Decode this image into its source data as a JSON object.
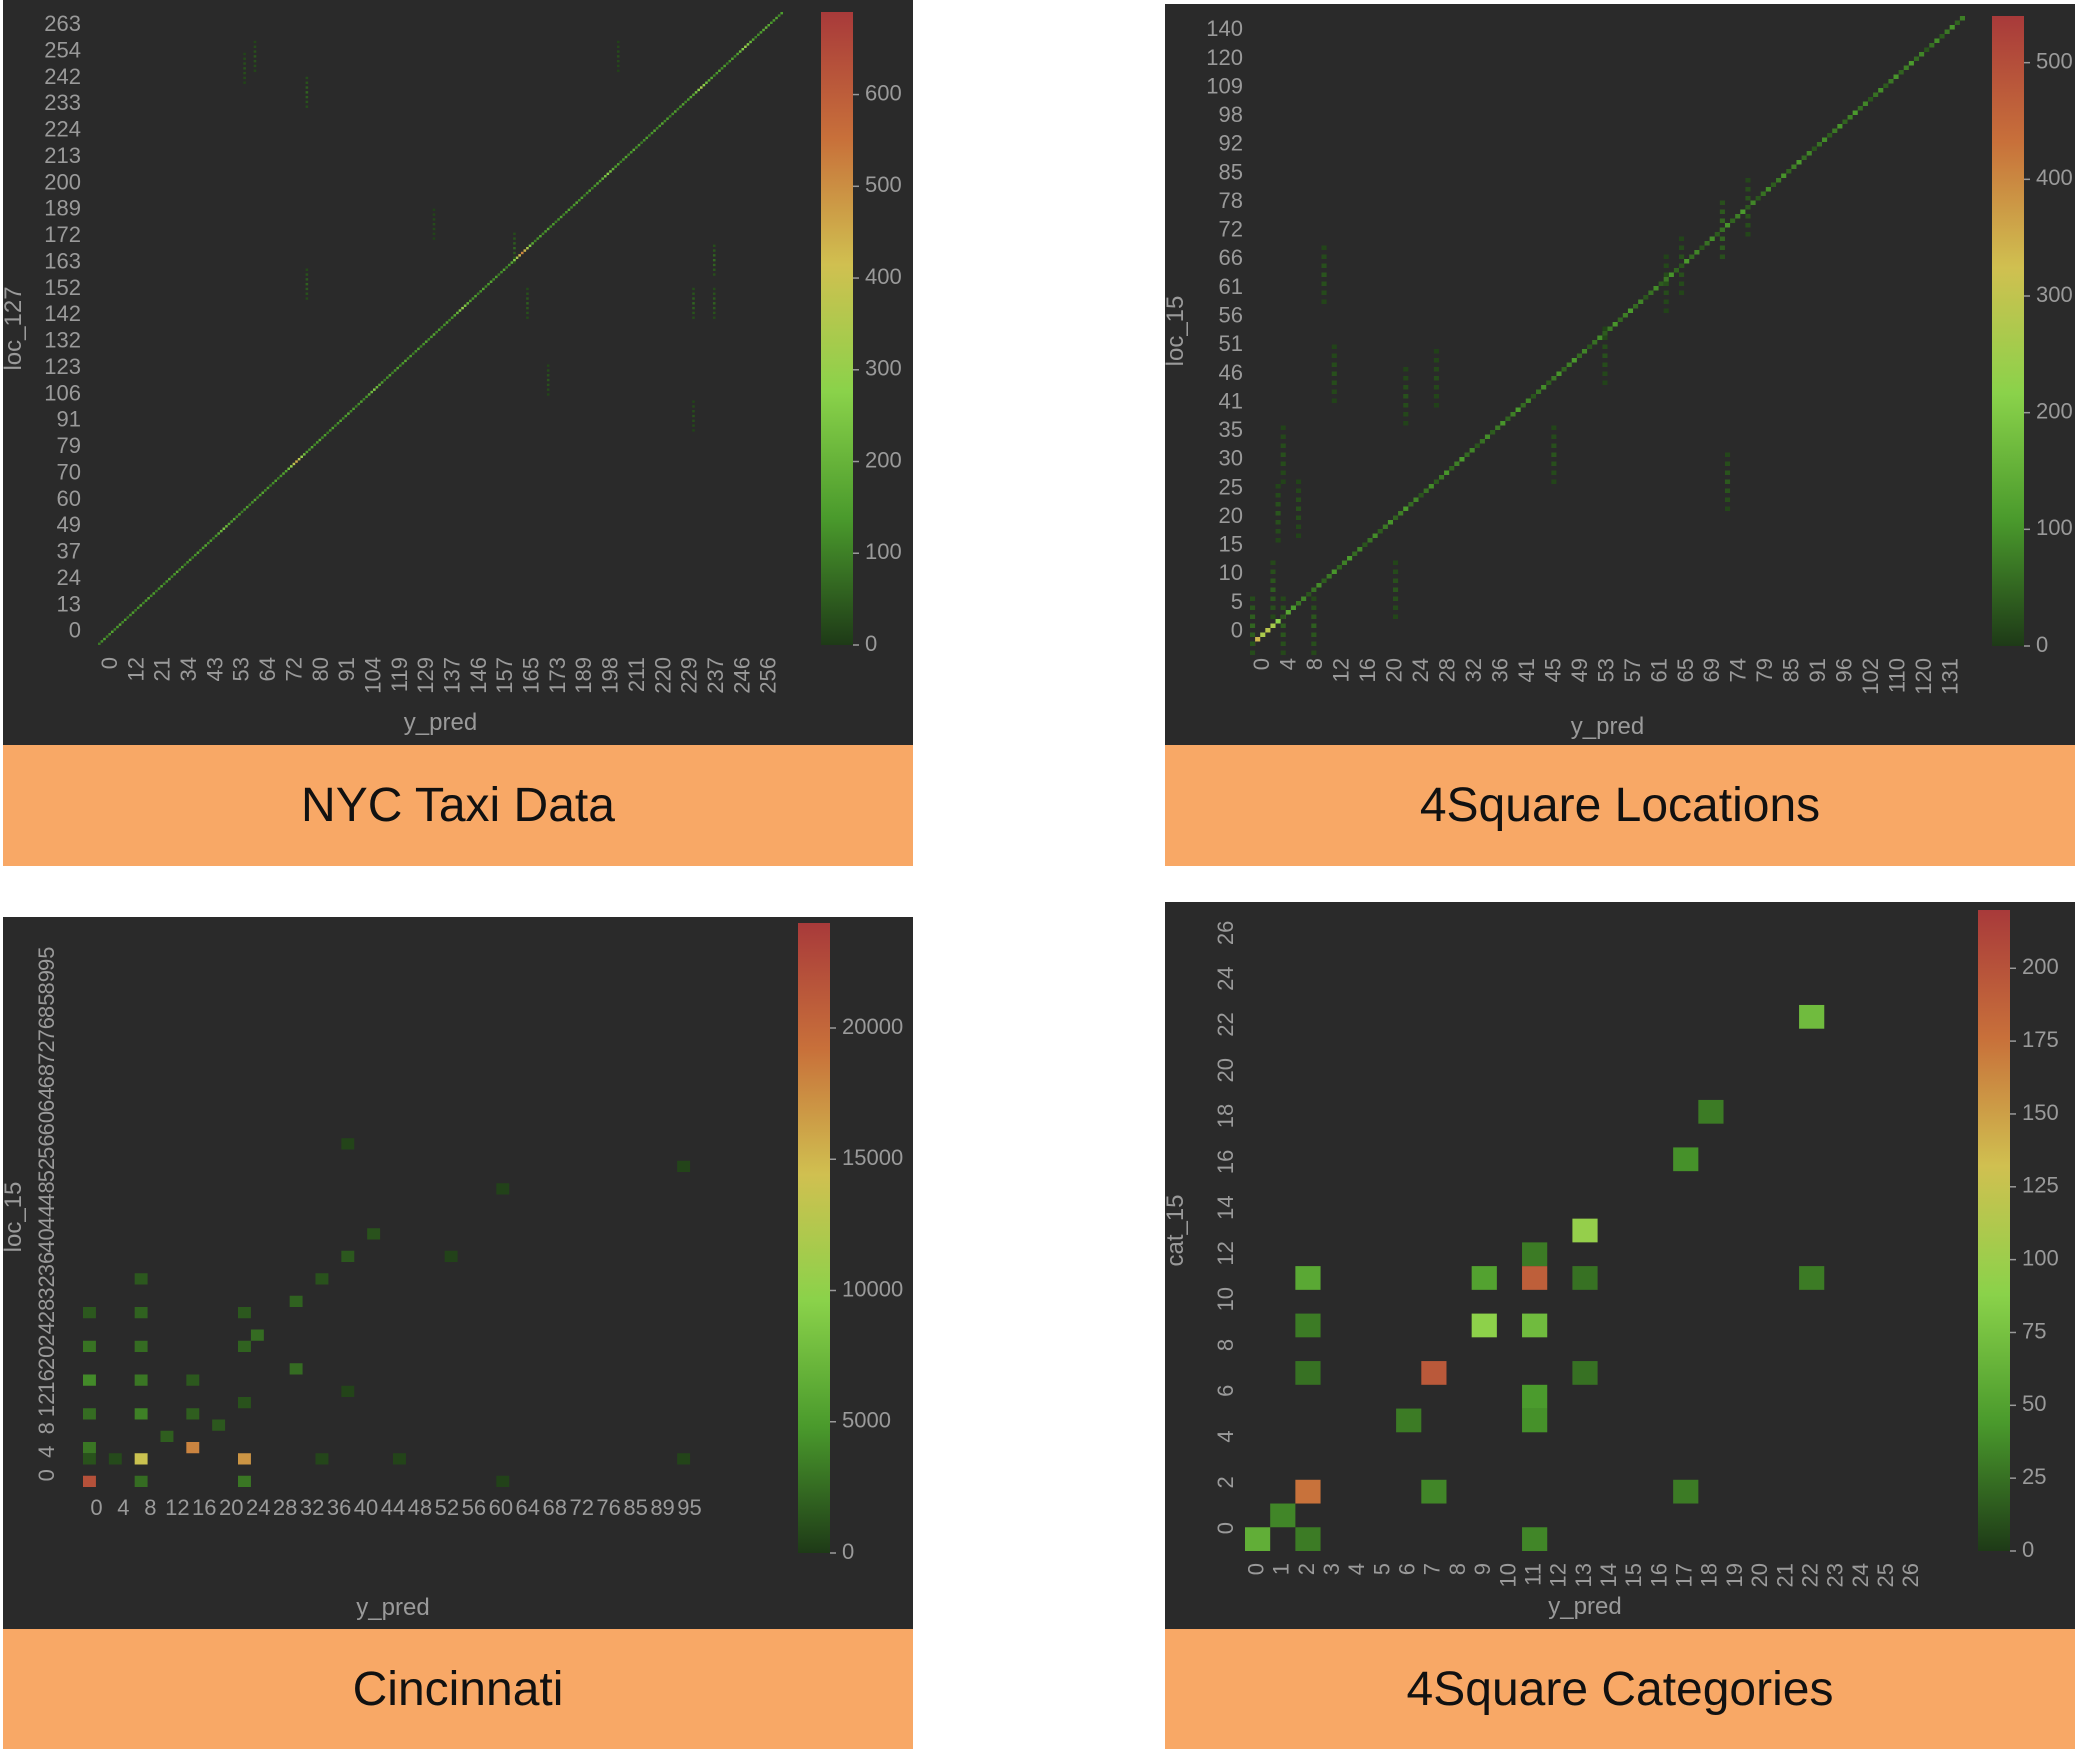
{
  "colors": {
    "panel_bg": "#2a2a2a",
    "caption_bg": "#f8a866",
    "tick_text": "#9a9a9a",
    "cmap": [
      "#1e3a17",
      "#4a9a2c",
      "#8ad24a",
      "#d0c050",
      "#c8703a",
      "#a83a3a"
    ]
  },
  "chart_data": [
    {
      "type": "heatmap",
      "caption": "NYC Taxi Data",
      "xlabel": "y_pred",
      "ylabel": "loc_127",
      "xticks": [
        "0",
        "12",
        "21",
        "34",
        "43",
        "53",
        "64",
        "72",
        "80",
        "91",
        "104",
        "119",
        "129",
        "137",
        "146",
        "157",
        "165",
        "173",
        "189",
        "198",
        "211",
        "220",
        "229",
        "237",
        "246",
        "256"
      ],
      "yticks": [
        "0",
        "13",
        "24",
        "37",
        "49",
        "60",
        "70",
        "79",
        "91",
        "106",
        "123",
        "132",
        "142",
        "152",
        "163",
        "172",
        "189",
        "200",
        "213",
        "224",
        "233",
        "242",
        "254",
        "263"
      ],
      "n": 264,
      "colorbar": {
        "ticks": [
          0,
          100,
          200,
          300,
          400,
          500,
          600
        ],
        "max": 690
      },
      "diagonal": {
        "base": 90,
        "peaks": [
          [
            232,
            340
          ],
          [
            163,
            520
          ],
          [
            140,
            300
          ],
          [
            106,
            260
          ],
          [
            76,
            450
          ],
          [
            48,
            250
          ],
          [
            196,
            280
          ],
          [
            249,
            310
          ],
          [
            257,
            200
          ]
        ]
      },
      "off_diagonal": [
        [
          80,
          230,
          60
        ],
        [
          80,
          150,
          55
        ],
        [
          160,
          165,
          60
        ],
        [
          237,
          160,
          70
        ],
        [
          229,
          142,
          60
        ],
        [
          237,
          142,
          55
        ],
        [
          165,
          142,
          50
        ],
        [
          173,
          110,
          40
        ],
        [
          56,
          240,
          35
        ],
        [
          60,
          245,
          40
        ],
        [
          200,
          245,
          30
        ],
        [
          229,
          95,
          35
        ],
        [
          129,
          175,
          25
        ]
      ]
    },
    {
      "type": "heatmap",
      "caption": "4Square Locations",
      "xlabel": "y_pred",
      "ylabel": "loc_15",
      "xticks": [
        "0",
        "4",
        "8",
        "12",
        "16",
        "20",
        "24",
        "28",
        "32",
        "36",
        "41",
        "45",
        "49",
        "53",
        "57",
        "61",
        "65",
        "69",
        "74",
        "79",
        "85",
        "91",
        "96",
        "102",
        "110",
        "120",
        "131"
      ],
      "yticks": [
        "0",
        "5",
        "10",
        "15",
        "20",
        "25",
        "30",
        "35",
        "41",
        "46",
        "51",
        "56",
        "61",
        "66",
        "72",
        "78",
        "85",
        "92",
        "98",
        "109",
        "120",
        "140"
      ],
      "n": 140,
      "colorbar": {
        "ticks": [
          0,
          100,
          200,
          300,
          400,
          500
        ],
        "max": 540
      },
      "diagonal": {
        "base": 30,
        "peaks": [
          [
            3,
            290
          ],
          [
            4,
            260
          ],
          [
            2,
            150
          ],
          [
            5,
            200
          ],
          [
            1,
            120
          ],
          [
            0,
            400
          ]
        ]
      },
      "off_diagonal": [
        [
          4,
          12,
          40
        ],
        [
          0,
          4,
          50
        ],
        [
          6,
          4,
          40
        ],
        [
          12,
          4,
          40
        ],
        [
          28,
          12,
          30
        ],
        [
          5,
          29,
          30
        ],
        [
          6,
          42,
          25
        ],
        [
          9,
          30,
          25
        ],
        [
          59,
          42,
          30
        ],
        [
          92,
          92,
          60
        ],
        [
          97,
          97,
          35
        ],
        [
          84,
          84,
          30
        ],
        [
          69,
          64,
          25
        ],
        [
          81,
          80,
          25
        ],
        [
          36,
          59,
          20
        ],
        [
          93,
          36,
          35
        ],
        [
          14,
          82,
          30
        ],
        [
          16,
          60,
          25
        ],
        [
          30,
          55,
          25
        ]
      ]
    },
    {
      "type": "heatmap",
      "caption": "Cincinnati",
      "xlabel": "y_pred",
      "ylabel": "loc_15",
      "xticks": [
        "0",
        "4",
        "8",
        "12",
        "16",
        "20",
        "24",
        "28",
        "32",
        "36",
        "40",
        "44",
        "48",
        "52",
        "56",
        "60",
        "64",
        "68",
        "72",
        "76",
        "85",
        "89",
        "95"
      ],
      "yticks": [
        "0",
        "4",
        "8",
        "12",
        "16",
        "20",
        "24",
        "28",
        "32",
        "36",
        "40",
        "44",
        "48",
        "52",
        "56",
        "60",
        "64",
        "68",
        "72",
        "76",
        "85",
        "89",
        "95"
      ],
      "n": 48,
      "colorbar": {
        "ticks": [
          0,
          5000,
          10000,
          15000,
          20000
        ],
        "max": 24000
      },
      "cells": [
        [
          0,
          0,
          22000
        ],
        [
          0,
          3,
          3000
        ],
        [
          0,
          6,
          2500
        ],
        [
          0,
          9,
          4000
        ],
        [
          0,
          12,
          2800
        ],
        [
          0,
          15,
          1500
        ],
        [
          0,
          2,
          1200
        ],
        [
          4,
          0,
          2500
        ],
        [
          4,
          2,
          14000
        ],
        [
          4,
          6,
          3500
        ],
        [
          4,
          9,
          3000
        ],
        [
          4,
          12,
          2500
        ],
        [
          4,
          15,
          2000
        ],
        [
          4,
          18,
          1500
        ],
        [
          8,
          3,
          18000
        ],
        [
          8,
          6,
          1800
        ],
        [
          8,
          9,
          1500
        ],
        [
          12,
          0,
          3000
        ],
        [
          12,
          2,
          17000
        ],
        [
          12,
          7,
          1200
        ],
        [
          12,
          12,
          2000
        ],
        [
          12,
          15,
          1500
        ],
        [
          13,
          13,
          2500
        ],
        [
          16,
          16,
          2000
        ],
        [
          18,
          18,
          1200
        ],
        [
          20,
          20,
          1500
        ],
        [
          22,
          22,
          1200
        ],
        [
          16,
          10,
          2500
        ],
        [
          6,
          4,
          1800
        ],
        [
          10,
          5,
          1500
        ],
        [
          2,
          2,
          800
        ],
        [
          18,
          2,
          600
        ],
        [
          20,
          8,
          500
        ],
        [
          32,
          0,
          400
        ],
        [
          46,
          2,
          500
        ],
        [
          46,
          28,
          500
        ],
        [
          20,
          30,
          500
        ],
        [
          24,
          2,
          500
        ],
        [
          32,
          26,
          400
        ],
        [
          28,
          20,
          400
        ]
      ]
    },
    {
      "type": "heatmap",
      "caption": "4Square Categories",
      "xlabel": "y_pred",
      "ylabel": "cat_15",
      "xticks": [
        "0",
        "1",
        "2",
        "3",
        "4",
        "5",
        "6",
        "7",
        "8",
        "9",
        "10",
        "11",
        "12",
        "13",
        "14",
        "15",
        "16",
        "17",
        "18",
        "19",
        "20",
        "21",
        "22",
        "23",
        "24",
        "25",
        "26"
      ],
      "yticks": [
        "0",
        "2",
        "4",
        "6",
        "8",
        "10",
        "12",
        "14",
        "16",
        "18",
        "20",
        "22",
        "24",
        "26"
      ],
      "n": 27,
      "colorbar": {
        "ticks": [
          0,
          25,
          50,
          75,
          100,
          125,
          150,
          175,
          200
        ],
        "max": 220
      },
      "cells": [
        [
          0,
          0,
          60
        ],
        [
          2,
          2,
          175
        ],
        [
          7,
          7,
          195
        ],
        [
          11,
          11,
          190
        ],
        [
          9,
          9,
          90
        ],
        [
          11,
          9,
          70
        ],
        [
          13,
          13,
          95
        ],
        [
          22,
          22,
          70
        ],
        [
          2,
          11,
          55
        ],
        [
          9,
          11,
          50
        ],
        [
          11,
          5,
          40
        ],
        [
          11,
          6,
          45
        ],
        [
          6,
          5,
          30
        ],
        [
          7,
          2,
          35
        ],
        [
          17,
          16,
          40
        ],
        [
          18,
          18,
          30
        ],
        [
          1,
          1,
          35
        ],
        [
          2,
          0,
          30
        ],
        [
          11,
          0,
          35
        ],
        [
          17,
          2,
          30
        ],
        [
          22,
          11,
          30
        ],
        [
          11,
          12,
          30
        ],
        [
          13,
          11,
          25
        ],
        [
          13,
          7,
          25
        ],
        [
          2,
          7,
          25
        ],
        [
          2,
          9,
          30
        ]
      ]
    }
  ]
}
